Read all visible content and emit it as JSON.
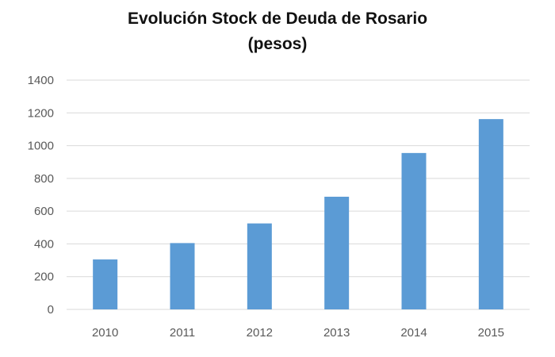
{
  "chart_data": {
    "type": "bar",
    "title_lines": [
      "Evolución Stock de Deuda de Rosario",
      "(pesos)"
    ],
    "categories": [
      "2010",
      "2011",
      "2012",
      "2013",
      "2014",
      "2015"
    ],
    "values": [
      305,
      405,
      525,
      688,
      955,
      1162
    ],
    "ylim": [
      0,
      1400
    ],
    "yticks": [
      0,
      200,
      400,
      600,
      800,
      1000,
      1200,
      1400
    ],
    "xlabel": "",
    "ylabel": "",
    "grid": true,
    "legend": "none",
    "bar_color": "#5b9bd5",
    "grid_color": "#d9d9d9"
  }
}
